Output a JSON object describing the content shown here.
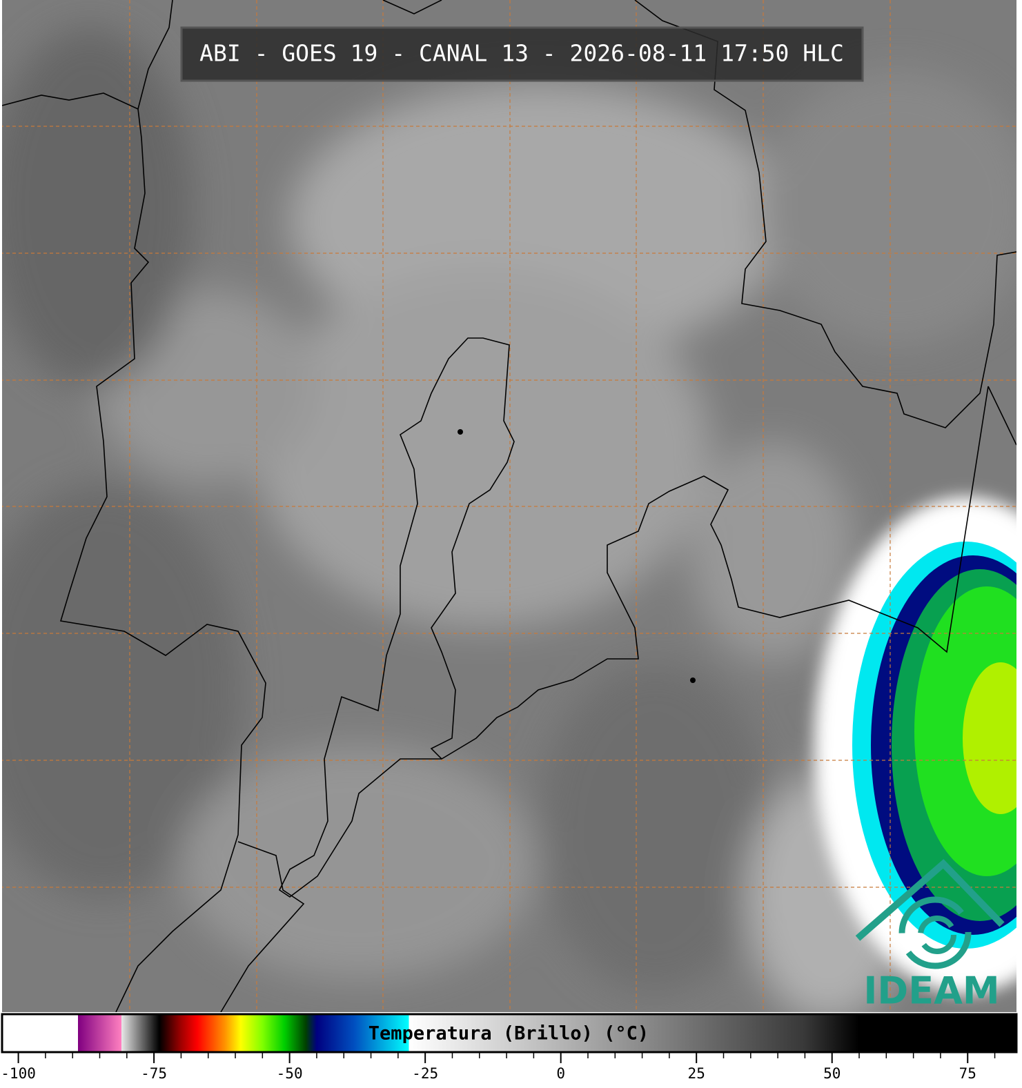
{
  "header": {
    "title": "ABI - GOES 19 - CANAL 13 - 2026-08-11 17:50 HLC"
  },
  "logo": {
    "text": "IDEAM"
  },
  "colorbar": {
    "label": "Temperatura (Brillo) (°C)",
    "xlim": [
      -103,
      84
    ],
    "xticks": [
      -100,
      -75,
      -50,
      -25,
      0,
      25,
      50,
      75
    ],
    "minor_xticks": [
      -95,
      -90,
      -85,
      -80,
      -70,
      -65,
      -60,
      -55,
      -45,
      -40,
      -35,
      -30,
      -20,
      -15,
      -10,
      -5,
      5,
      10,
      15,
      20,
      30,
      35,
      40,
      45,
      55,
      60,
      65,
      70,
      80
    ],
    "colormap": [
      {
        "value": -103,
        "color": "#ffffff"
      },
      {
        "value": -89,
        "color": "#ffffff"
      },
      {
        "value": -89,
        "color": "#800080"
      },
      {
        "value": -81,
        "color": "#ff80c0"
      },
      {
        "value": -81,
        "color": "#e8e8e8"
      },
      {
        "value": -75,
        "color": "#202020"
      },
      {
        "value": -74,
        "color": "#000000"
      },
      {
        "value": -70,
        "color": "#a00000"
      },
      {
        "value": -67,
        "color": "#ff0000"
      },
      {
        "value": -62,
        "color": "#ff9000"
      },
      {
        "value": -59,
        "color": "#ffff00"
      },
      {
        "value": -55,
        "color": "#80ff00"
      },
      {
        "value": -51,
        "color": "#00d000"
      },
      {
        "value": -47,
        "color": "#004000"
      },
      {
        "value": -45,
        "color": "#000080"
      },
      {
        "value": -38,
        "color": "#0050c0"
      },
      {
        "value": -28,
        "color": "#00ffff"
      },
      {
        "value": -28,
        "color": "#ffffff"
      },
      {
        "value": -10,
        "color": "#d0d0d0"
      },
      {
        "value": 45,
        "color": "#383838"
      },
      {
        "value": 55,
        "color": "#000000"
      },
      {
        "value": 84,
        "color": "#000000"
      }
    ]
  }
}
